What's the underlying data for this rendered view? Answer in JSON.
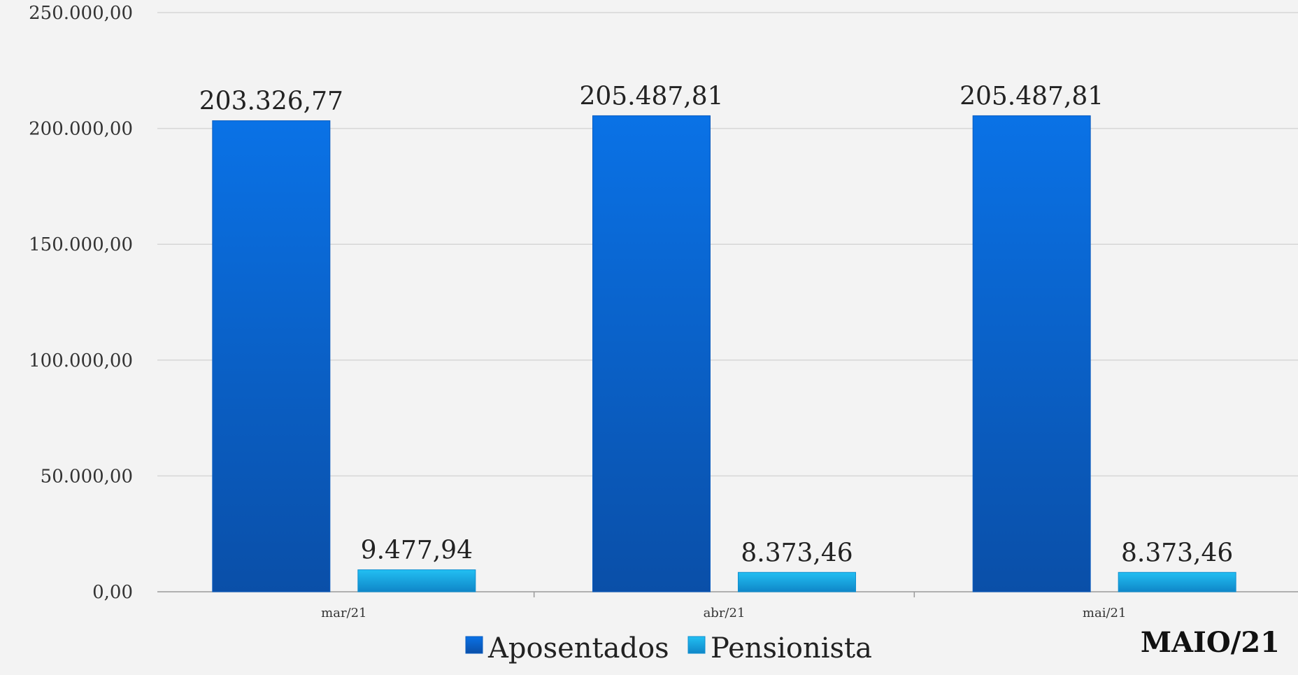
{
  "chart_data": {
    "type": "bar",
    "categories": [
      "mar/21",
      "abr/21",
      "mai/21"
    ],
    "series": [
      {
        "name": "Aposentados",
        "values": [
          203326.77,
          205487.81,
          205487.81
        ],
        "labels": [
          "203.326,77",
          "205.487,81",
          "205.487,81"
        ],
        "color": "#0b66d0"
      },
      {
        "name": "Pensionista",
        "values": [
          9477.94,
          8373.46,
          8373.46
        ],
        "labels": [
          "9.477,94",
          "8.373,46",
          "8.373,46"
        ],
        "color": "#1aa9e6"
      }
    ],
    "ylim": [
      0,
      250000
    ],
    "yticks": [
      0,
      50000,
      100000,
      150000,
      200000,
      250000
    ],
    "ytick_labels": [
      "0,00",
      "50.000,00",
      "100.000,00",
      "150.000,00",
      "200.000,00",
      "250.000,00"
    ],
    "grid": true,
    "legend": "bottom-center",
    "xlabel": "",
    "ylabel": ""
  },
  "corner_label": "MAIO/21"
}
